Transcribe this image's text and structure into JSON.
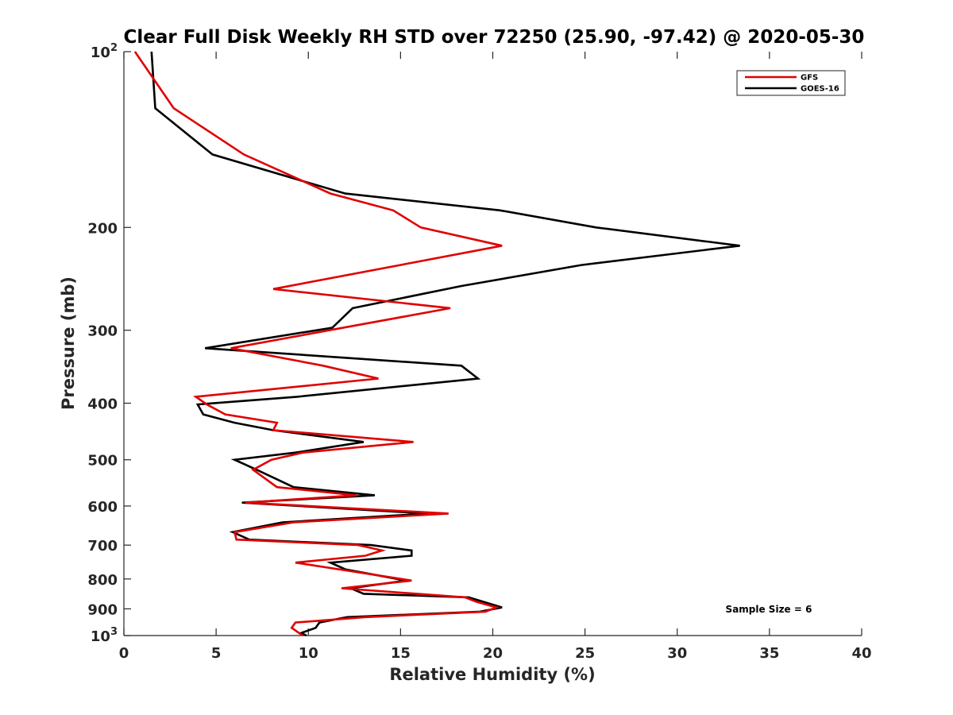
{
  "chart_data": {
    "type": "line",
    "title": "Clear Full Disk Weekly RH STD over 72250 (25.90, -97.42) @ 2020-05-30",
    "xlabel": "Relative Humidity (%)",
    "ylabel": "Pressure (mb)",
    "xlim": [
      0,
      40
    ],
    "ylim": [
      100,
      1000
    ],
    "y_scale": "log",
    "y_reversed": true,
    "grid": false,
    "legend_position": "top-right",
    "x_ticks": [
      "0",
      "5",
      "10",
      "15",
      "20",
      "25",
      "30",
      "35",
      "40"
    ],
    "x_tick_values": [
      0,
      5,
      10,
      15,
      20,
      25,
      30,
      35,
      40
    ],
    "y_ticks": [
      {
        "value": 100,
        "base": "10",
        "exp": "2"
      },
      {
        "value": 200,
        "label": "200"
      },
      {
        "value": 300,
        "label": "300"
      },
      {
        "value": 400,
        "label": "400"
      },
      {
        "value": 500,
        "label": "500"
      },
      {
        "value": 600,
        "label": "600"
      },
      {
        "value": 700,
        "label": "700"
      },
      {
        "value": 800,
        "label": "800"
      },
      {
        "value": 900,
        "label": "900"
      },
      {
        "value": 1000,
        "base": "10",
        "exp": "3"
      }
    ],
    "annotation": "Sample Size = 6",
    "series": [
      {
        "name": "GFS",
        "color": "#e00000",
        "points": [
          [
            0.6,
            100
          ],
          [
            2.7,
            125
          ],
          [
            6.5,
            150
          ],
          [
            11.2,
            175
          ],
          [
            14.6,
            187
          ],
          [
            16.1,
            200
          ],
          [
            20.5,
            215
          ],
          [
            15.6,
            230
          ],
          [
            8.1,
            255
          ],
          [
            17.7,
            275
          ],
          [
            5.8,
            322
          ],
          [
            10.8,
            345
          ],
          [
            13.8,
            363
          ],
          [
            3.9,
            390
          ],
          [
            4.5,
            402
          ],
          [
            5.5,
            418
          ],
          [
            8.3,
            432
          ],
          [
            8.1,
            445
          ],
          [
            15.7,
            466
          ],
          [
            9.7,
            486
          ],
          [
            8.0,
            500
          ],
          [
            7.0,
            520
          ],
          [
            8.3,
            557
          ],
          [
            12.6,
            575
          ],
          [
            6.6,
            592
          ],
          [
            17.6,
            618
          ],
          [
            9.2,
            640
          ],
          [
            6.0,
            665
          ],
          [
            6.1,
            685
          ],
          [
            12.7,
            700
          ],
          [
            14.0,
            715
          ],
          [
            13.1,
            730
          ],
          [
            9.3,
            750
          ],
          [
            15.6,
            805
          ],
          [
            11.8,
            830
          ],
          [
            18.5,
            860
          ],
          [
            19.1,
            875
          ],
          [
            20.2,
            895
          ],
          [
            19.6,
            910
          ],
          [
            13.1,
            930
          ],
          [
            9.3,
            950
          ],
          [
            9.1,
            970
          ],
          [
            9.5,
            990
          ],
          [
            9.7,
            1000
          ]
        ]
      },
      {
        "name": "GOES-16",
        "color": "#000000",
        "points": [
          [
            1.5,
            100
          ],
          [
            1.7,
            125
          ],
          [
            4.8,
            150
          ],
          [
            12.0,
            175
          ],
          [
            20.4,
            187
          ],
          [
            25.6,
            200
          ],
          [
            33.4,
            215
          ],
          [
            24.8,
            232
          ],
          [
            18.3,
            252
          ],
          [
            12.4,
            275
          ],
          [
            11.3,
            297
          ],
          [
            4.4,
            322
          ],
          [
            18.3,
            345
          ],
          [
            19.2,
            363
          ],
          [
            9.4,
            390
          ],
          [
            4.0,
            402
          ],
          [
            4.3,
            418
          ],
          [
            6.0,
            432
          ],
          [
            8.1,
            445
          ],
          [
            13.0,
            466
          ],
          [
            9.3,
            486
          ],
          [
            6.0,
            500
          ],
          [
            7.2,
            520
          ],
          [
            9.2,
            557
          ],
          [
            13.6,
            575
          ],
          [
            6.4,
            592
          ],
          [
            16.5,
            618
          ],
          [
            8.6,
            640
          ],
          [
            5.9,
            665
          ],
          [
            6.8,
            685
          ],
          [
            13.4,
            700
          ],
          [
            15.6,
            715
          ],
          [
            15.6,
            730
          ],
          [
            11.2,
            750
          ],
          [
            12.0,
            770
          ],
          [
            15.3,
            805
          ],
          [
            12.3,
            830
          ],
          [
            13.0,
            848
          ],
          [
            18.7,
            860
          ],
          [
            20.5,
            895
          ],
          [
            19.3,
            910
          ],
          [
            12.1,
            930
          ],
          [
            10.6,
            950
          ],
          [
            10.4,
            970
          ],
          [
            9.6,
            990
          ],
          [
            9.9,
            1000
          ]
        ]
      }
    ]
  }
}
